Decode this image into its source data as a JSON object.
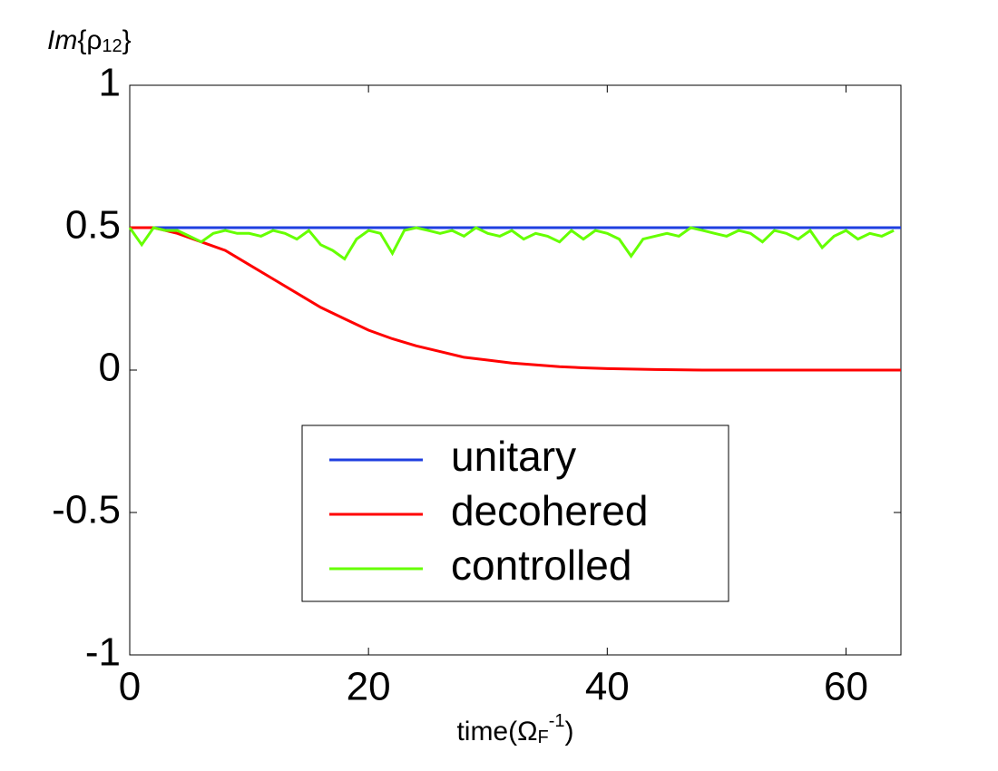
{
  "chart_data": {
    "type": "line",
    "ylabel": [
      "Im",
      "{ρ",
      "12",
      "}"
    ],
    "xlabel": [
      "time(Ω",
      "F",
      "-1",
      ")"
    ],
    "xlim": [
      0,
      64.6
    ],
    "ylim": [
      -1,
      1
    ],
    "xticks": [
      0,
      20,
      40,
      60
    ],
    "yticks": [
      -1,
      -0.5,
      0,
      0.5,
      1
    ],
    "grid": false,
    "legend": "lower center",
    "series": [
      {
        "name": "unitary",
        "color": "#1f3fe0",
        "x": [
          0,
          64.6
        ],
        "values": [
          0.5,
          0.5
        ]
      },
      {
        "name": "decohered",
        "color": "#ff0000",
        "x": [
          0,
          2,
          4,
          6,
          8,
          10,
          12,
          14,
          16,
          18,
          20,
          22,
          24,
          26,
          28,
          30,
          32,
          34,
          36,
          38,
          40,
          44,
          48,
          64.6
        ],
        "values": [
          0.5,
          0.5,
          0.48,
          0.45,
          0.42,
          0.37,
          0.32,
          0.27,
          0.22,
          0.18,
          0.14,
          0.11,
          0.085,
          0.065,
          0.045,
          0.035,
          0.025,
          0.018,
          0.012,
          0.008,
          0.005,
          0.002,
          0,
          0
        ]
      },
      {
        "name": "controlled",
        "color": "#66ff00",
        "x": [
          0,
          1,
          2,
          3,
          4,
          5,
          6,
          7,
          8,
          9,
          10,
          11,
          12,
          13,
          14,
          15,
          16,
          17,
          18,
          19,
          20,
          21,
          22,
          23,
          24,
          25,
          26,
          27,
          28,
          29,
          30,
          31,
          32,
          33,
          34,
          35,
          36,
          37,
          38,
          39,
          40,
          41,
          42,
          43,
          44,
          45,
          46,
          47,
          48,
          49,
          50,
          51,
          52,
          53,
          54,
          55,
          56,
          57,
          58,
          59,
          60,
          61,
          62,
          63,
          64
        ],
        "values": [
          0.5,
          0.44,
          0.5,
          0.49,
          0.49,
          0.47,
          0.45,
          0.48,
          0.49,
          0.48,
          0.48,
          0.47,
          0.49,
          0.48,
          0.46,
          0.49,
          0.44,
          0.42,
          0.39,
          0.46,
          0.49,
          0.48,
          0.41,
          0.49,
          0.5,
          0.49,
          0.48,
          0.49,
          0.47,
          0.5,
          0.48,
          0.47,
          0.49,
          0.46,
          0.48,
          0.47,
          0.45,
          0.49,
          0.46,
          0.49,
          0.48,
          0.46,
          0.4,
          0.46,
          0.47,
          0.48,
          0.47,
          0.5,
          0.49,
          0.48,
          0.47,
          0.49,
          0.48,
          0.45,
          0.49,
          0.48,
          0.46,
          0.49,
          0.43,
          0.47,
          0.49,
          0.46,
          0.48,
          0.47,
          0.49
        ]
      }
    ]
  }
}
